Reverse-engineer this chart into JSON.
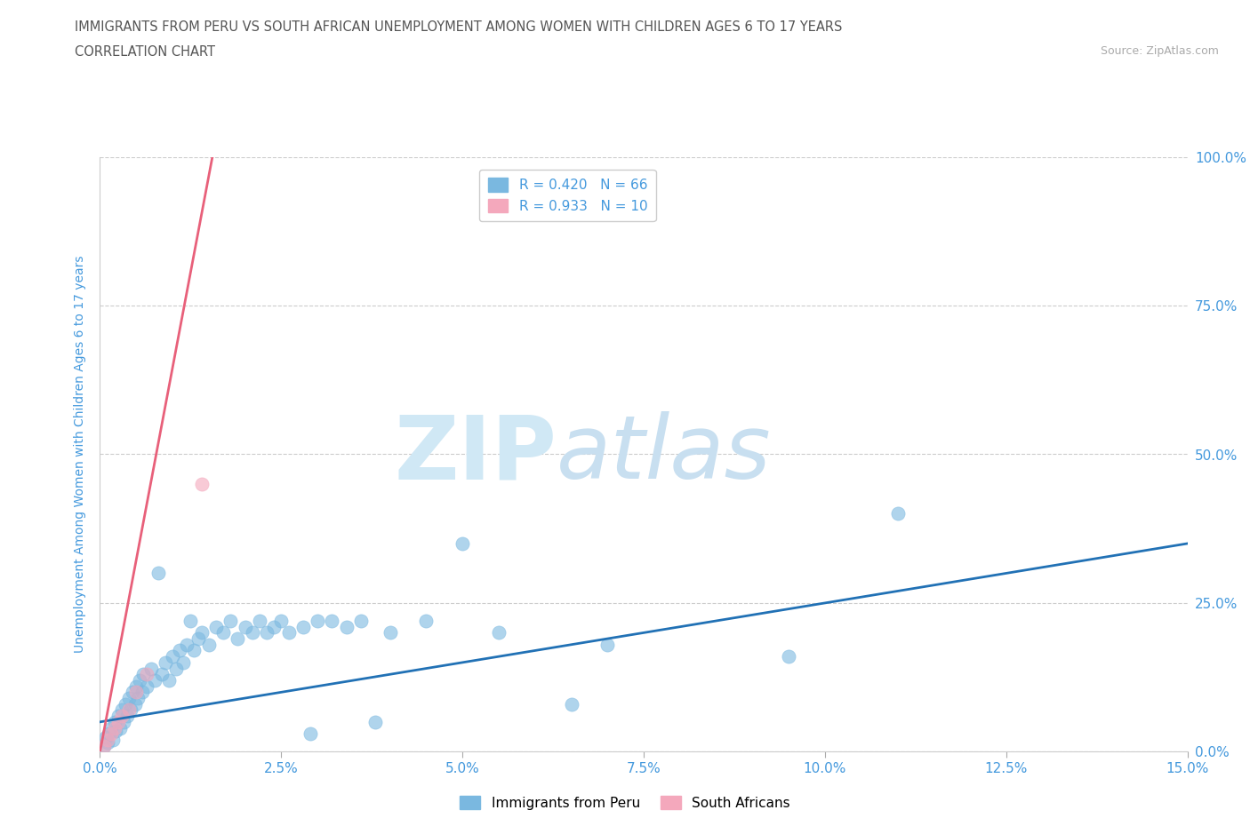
{
  "title_line1": "IMMIGRANTS FROM PERU VS SOUTH AFRICAN UNEMPLOYMENT AMONG WOMEN WITH CHILDREN AGES 6 TO 17 YEARS",
  "title_line2": "CORRELATION CHART",
  "source": "Source: ZipAtlas.com",
  "xlabel_vals": [
    0.0,
    2.5,
    5.0,
    7.5,
    10.0,
    12.5,
    15.0
  ],
  "ylabel_vals": [
    0.0,
    25.0,
    50.0,
    75.0,
    100.0
  ],
  "xlim": [
    0.0,
    15.0
  ],
  "ylim": [
    0.0,
    100.0
  ],
  "ylabel": "Unemployment Among Women with Children Ages 6 to 17 years",
  "legend_entry1": "R = 0.420   N = 66",
  "legend_entry2": "R = 0.933   N = 10",
  "legend_label1": "Immigrants from Peru",
  "legend_label2": "South Africans",
  "blue_color": "#7ab8e0",
  "pink_color": "#f4a8bc",
  "blue_line_color": "#2171b5",
  "pink_line_color": "#e8607a",
  "watermark_zip": "ZIP",
  "watermark_atlas": "atlas",
  "background_color": "#ffffff",
  "grid_color": "#cccccc",
  "title_color": "#555555",
  "tick_color": "#4499dd",
  "blue_scatter": [
    [
      0.05,
      1.0
    ],
    [
      0.08,
      2.5
    ],
    [
      0.1,
      1.5
    ],
    [
      0.12,
      3.0
    ],
    [
      0.15,
      4.0
    ],
    [
      0.18,
      2.0
    ],
    [
      0.2,
      5.0
    ],
    [
      0.22,
      3.5
    ],
    [
      0.25,
      6.0
    ],
    [
      0.28,
      4.0
    ],
    [
      0.3,
      7.0
    ],
    [
      0.32,
      5.0
    ],
    [
      0.35,
      8.0
    ],
    [
      0.38,
      6.0
    ],
    [
      0.4,
      9.0
    ],
    [
      0.42,
      7.0
    ],
    [
      0.45,
      10.0
    ],
    [
      0.48,
      8.0
    ],
    [
      0.5,
      11.0
    ],
    [
      0.52,
      9.0
    ],
    [
      0.55,
      12.0
    ],
    [
      0.58,
      10.0
    ],
    [
      0.6,
      13.0
    ],
    [
      0.65,
      11.0
    ],
    [
      0.7,
      14.0
    ],
    [
      0.75,
      12.0
    ],
    [
      0.8,
      30.0
    ],
    [
      0.85,
      13.0
    ],
    [
      0.9,
      15.0
    ],
    [
      0.95,
      12.0
    ],
    [
      1.0,
      16.0
    ],
    [
      1.05,
      14.0
    ],
    [
      1.1,
      17.0
    ],
    [
      1.15,
      15.0
    ],
    [
      1.2,
      18.0
    ],
    [
      1.25,
      22.0
    ],
    [
      1.3,
      17.0
    ],
    [
      1.35,
      19.0
    ],
    [
      1.4,
      20.0
    ],
    [
      1.5,
      18.0
    ],
    [
      1.6,
      21.0
    ],
    [
      1.7,
      20.0
    ],
    [
      1.8,
      22.0
    ],
    [
      1.9,
      19.0
    ],
    [
      2.0,
      21.0
    ],
    [
      2.1,
      20.0
    ],
    [
      2.2,
      22.0
    ],
    [
      2.3,
      20.0
    ],
    [
      2.4,
      21.0
    ],
    [
      2.5,
      22.0
    ],
    [
      2.6,
      20.0
    ],
    [
      2.8,
      21.0
    ],
    [
      3.0,
      22.0
    ],
    [
      3.2,
      22.0
    ],
    [
      3.4,
      21.0
    ],
    [
      3.6,
      22.0
    ],
    [
      3.8,
      5.0
    ],
    [
      4.0,
      20.0
    ],
    [
      4.5,
      22.0
    ],
    [
      5.0,
      35.0
    ],
    [
      5.5,
      20.0
    ],
    [
      7.0,
      18.0
    ],
    [
      9.5,
      16.0
    ],
    [
      11.0,
      40.0
    ],
    [
      2.9,
      3.0
    ],
    [
      6.5,
      8.0
    ]
  ],
  "pink_scatter": [
    [
      0.05,
      1.0
    ],
    [
      0.1,
      2.0
    ],
    [
      0.15,
      3.0
    ],
    [
      0.2,
      4.0
    ],
    [
      0.25,
      5.0
    ],
    [
      0.3,
      6.0
    ],
    [
      0.4,
      7.0
    ],
    [
      0.5,
      10.0
    ],
    [
      0.65,
      13.0
    ],
    [
      1.4,
      45.0
    ]
  ],
  "blue_trendline_x": [
    0.0,
    15.0
  ],
  "blue_trendline_y": [
    5.0,
    35.0
  ],
  "pink_trendline_x": [
    0.0,
    1.55
  ],
  "pink_trendline_y": [
    0.0,
    100.0
  ]
}
